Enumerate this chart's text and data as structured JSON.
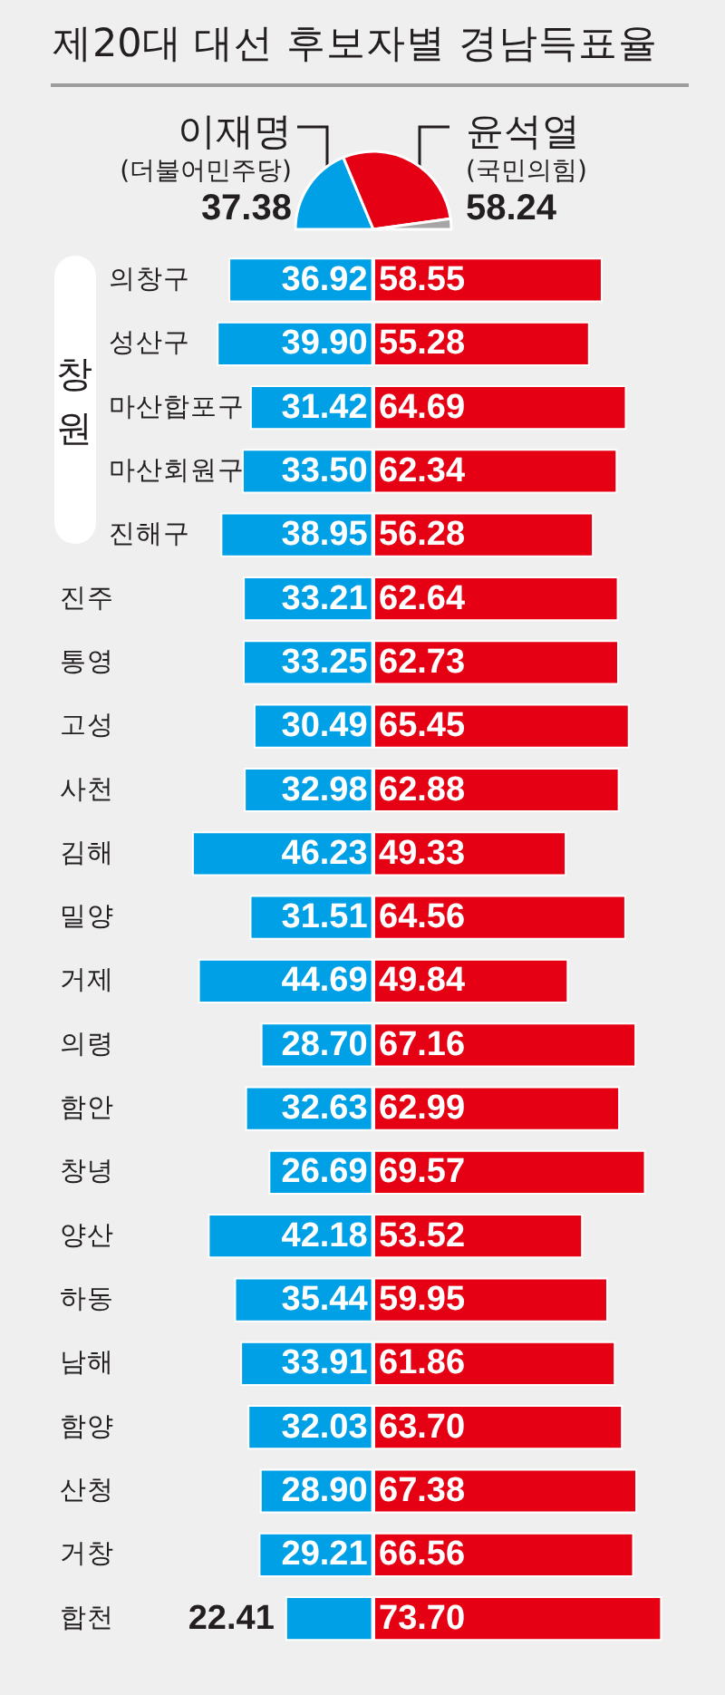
{
  "chart_data": [
    {
      "type": "pie",
      "title": "제20대 대선 후보자별 경남득표율",
      "categories": [
        "이재명\n(더불어민주당)",
        "윤석열\n(국민의힘)",
        null
      ],
      "values": [
        37.38,
        58.24,
        4.38
      ],
      "colors": [
        "#00a0e6",
        "#e60013",
        "#a6a6a6"
      ],
      "value_labels": [
        "37.38",
        "58.24",
        null
      ]
    },
    {
      "type": "bar",
      "orientation": "horizontal",
      "categories": [
        "의창구",
        "성산구",
        "마산합포구",
        "마산회원구",
        "진해구",
        "진주",
        "통영",
        "고성",
        "사천",
        "김해",
        "밀양",
        "거제",
        "의령",
        "함안",
        "창녕",
        "양산",
        "하동",
        "남해",
        "함양",
        "산청",
        "거창",
        "합천"
      ],
      "series": [
        {
          "color": "#00a0e6",
          "values": [
            36.92,
            39.9,
            31.42,
            33.5,
            38.95,
            33.21,
            33.25,
            30.49,
            32.98,
            46.23,
            31.51,
            44.69,
            28.7,
            32.63,
            26.69,
            42.18,
            35.44,
            33.91,
            32.03,
            28.9,
            29.21,
            22.41
          ],
          "value_labels": [
            "36.92",
            "39.90",
            "31.42",
            "33.50",
            "38.95",
            "33.21",
            "33.25",
            "30.49",
            "32.98",
            "46.23",
            "31.51",
            "44.69",
            "28.70",
            "32.63",
            "26.69",
            "42.18",
            "35.44",
            "33.91",
            "32.03",
            "28.90",
            "29.21",
            "22.41"
          ]
        }
      ],
      "xlim": [
        46.23,
        0
      ],
      "tick_labels": "y",
      "annotations": [
        "창원"
      ]
    },
    {
      "type": "bar",
      "orientation": "horizontal",
      "categories": [
        null,
        null,
        null,
        null,
        null,
        null,
        null,
        null,
        null,
        null,
        null,
        null,
        null,
        null,
        null,
        null,
        null,
        null,
        null,
        null,
        null,
        null
      ],
      "series": [
        {
          "color": "#e60013",
          "values": [
            58.55,
            55.28,
            64.69,
            62.34,
            56.28,
            62.64,
            62.73,
            65.45,
            62.88,
            49.33,
            64.56,
            49.84,
            67.16,
            62.99,
            69.57,
            53.52,
            59.95,
            61.86,
            63.7,
            67.38,
            66.56,
            73.7
          ],
          "value_labels": [
            "58.55",
            "55.28",
            "64.69",
            "62.34",
            "56.28",
            "62.64",
            "62.73",
            "65.45",
            "62.88",
            "49.33",
            "64.56",
            "49.84",
            "67.16",
            "62.99",
            "69.57",
            "53.52",
            "59.95",
            "61.86",
            "63.70",
            "67.38",
            "66.56",
            "73.70"
          ]
        }
      ],
      "xlim": [
        0,
        73.7
      ],
      "tick_labels": false
    }
  ]
}
